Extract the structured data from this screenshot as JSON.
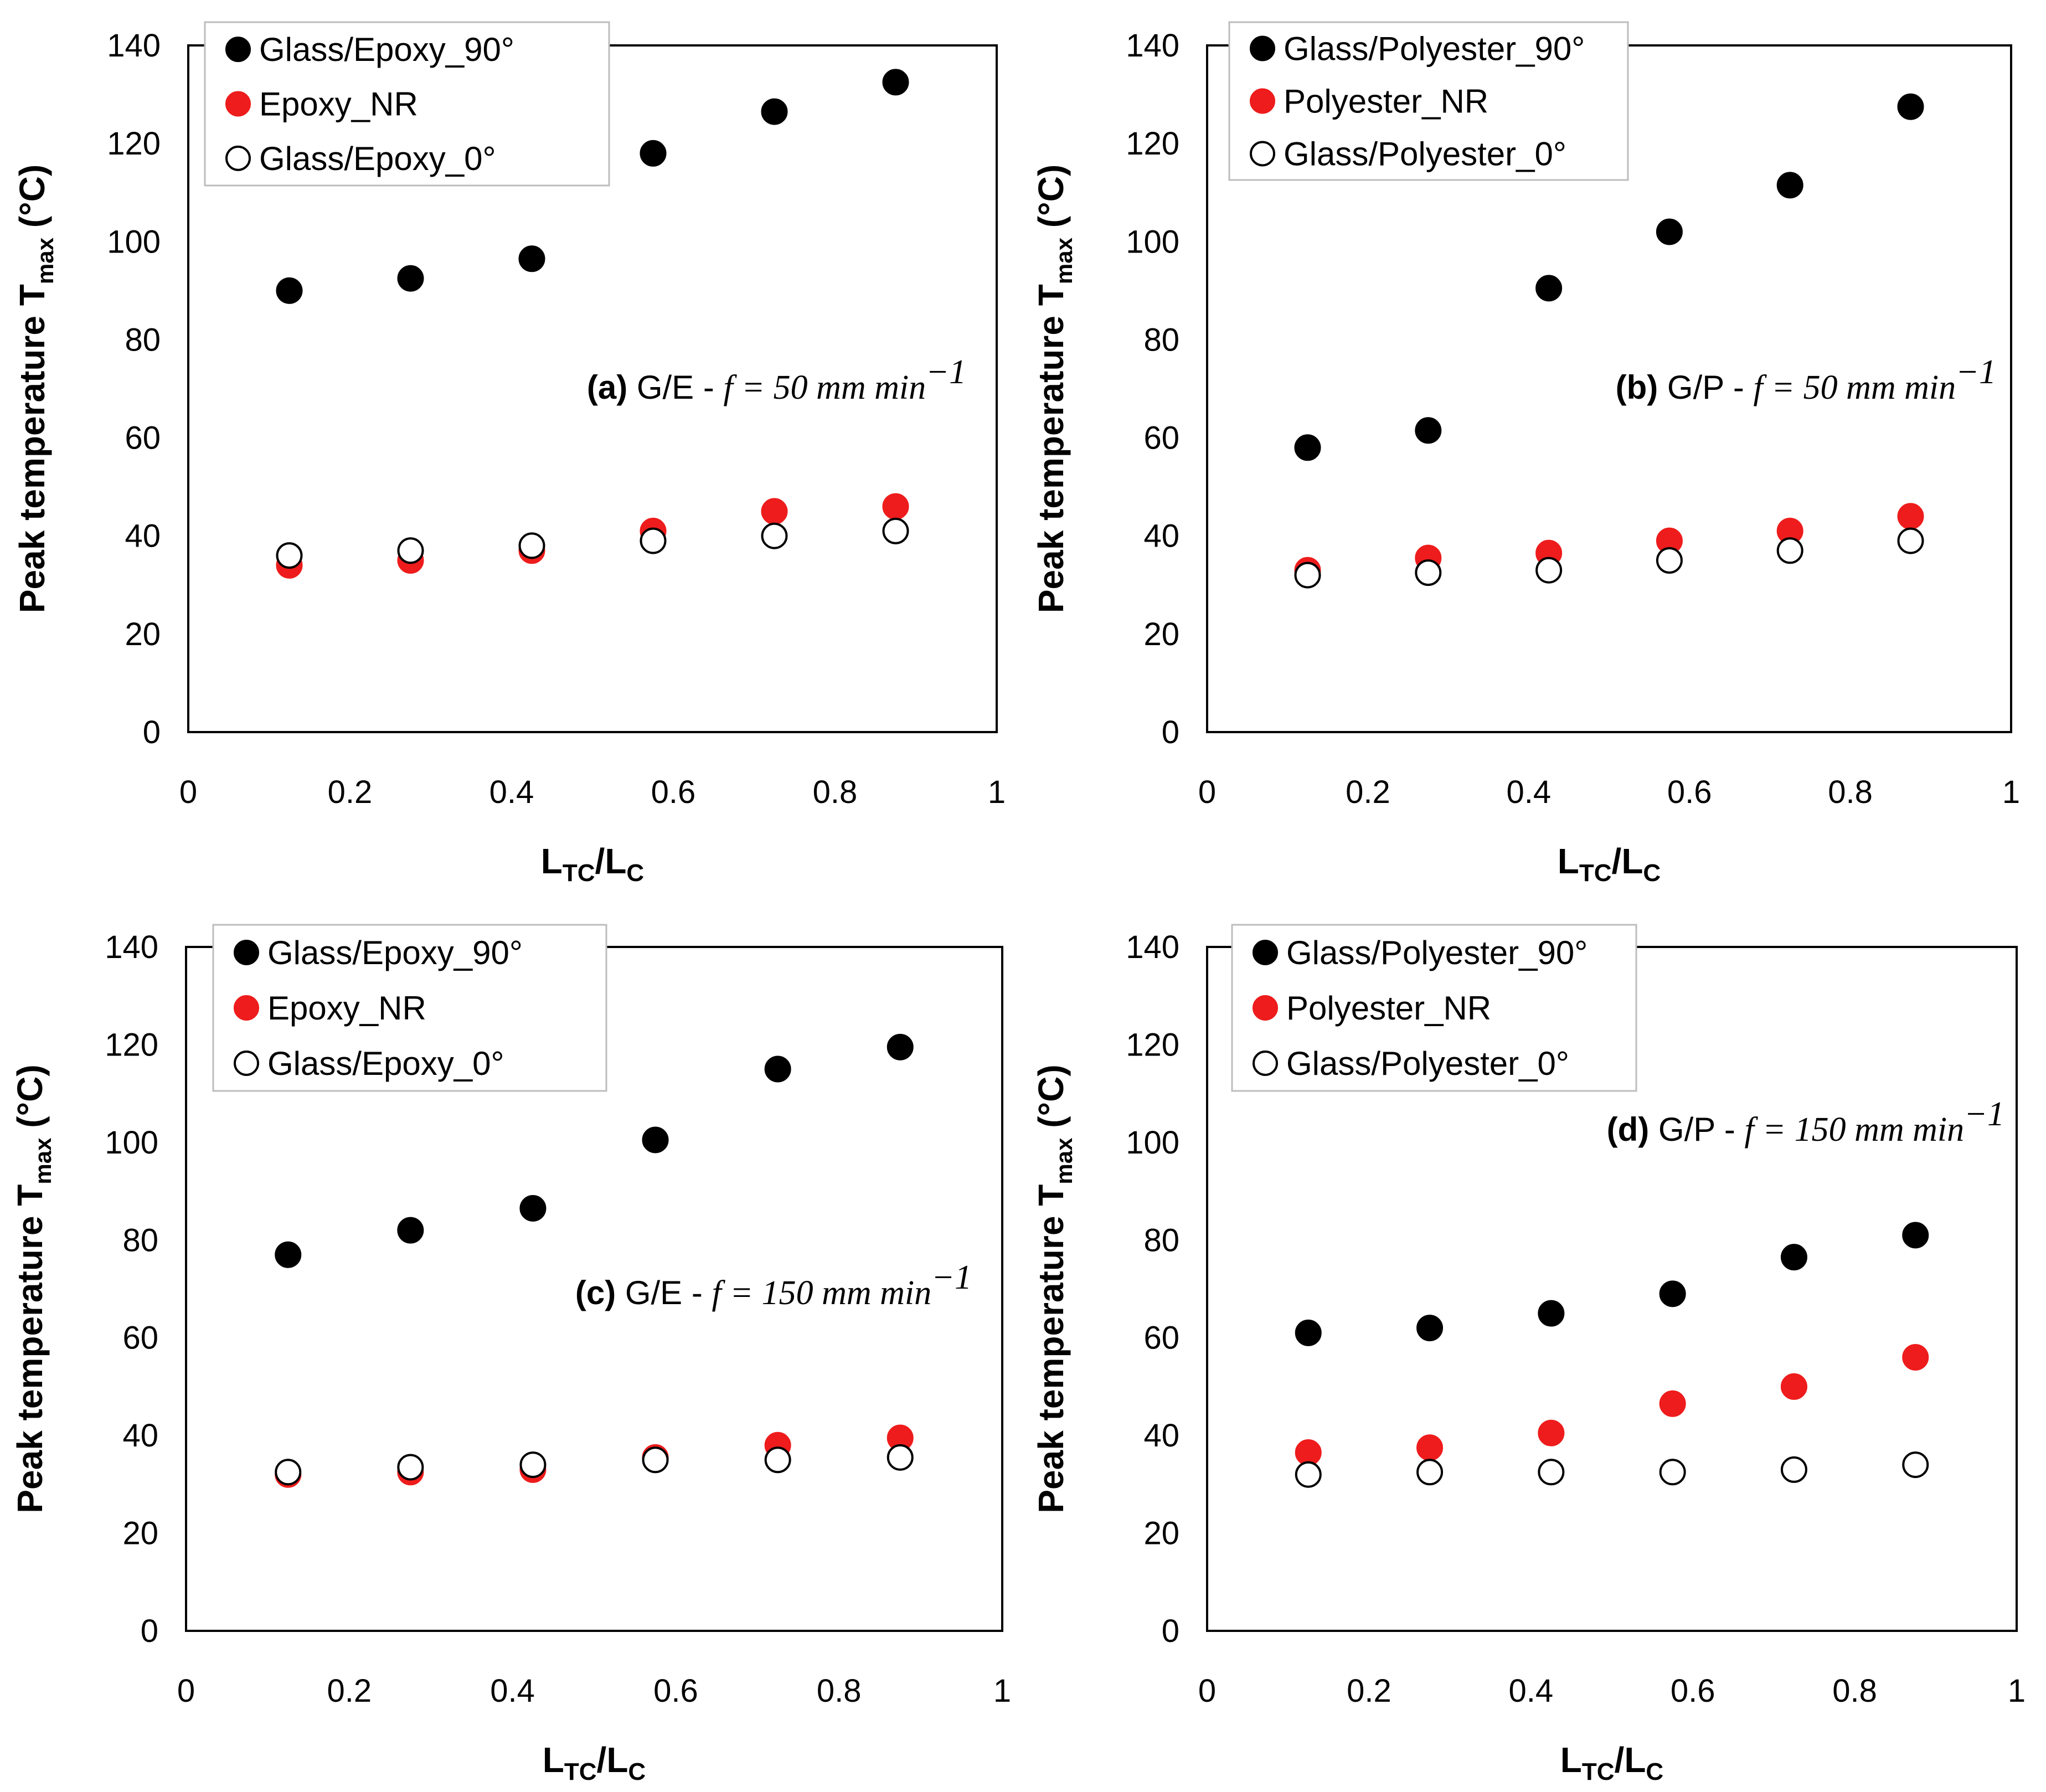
{
  "colors": {
    "black_marker": "#000000",
    "red_marker": "#ee1c1c",
    "open_marker_fill": "#ffffff"
  },
  "chart_data": [
    {
      "panel": "a",
      "type": "scatter",
      "xlabel_main": "L",
      "xlabel_sub1": "TC",
      "xlabel_sep": "/L",
      "xlabel_sub2": "C",
      "ylabel_main": "Peak temperature T",
      "ylabel_sub": "max",
      "ylabel_unit": " (°C)",
      "xlim": [
        0,
        1
      ],
      "ylim": [
        0,
        140
      ],
      "x_ticks": [
        "0",
        "0.2",
        "0.4",
        "0.6",
        "0.8",
        "1"
      ],
      "y_ticks": [
        "0",
        "20",
        "40",
        "60",
        "80",
        "100",
        "120",
        "140"
      ],
      "annotation": {
        "label": "(a)",
        "text": "G/E - ",
        "formula": "f = 50 mm min",
        "exponent": "−1"
      },
      "legend_position": "top-left",
      "series": [
        {
          "name": "Glass/Epoxy_90°",
          "marker": "filled-black",
          "x": [
            0.125,
            0.275,
            0.425,
            0.575,
            0.725,
            0.875
          ],
          "y": [
            90,
            92.5,
            96.5,
            118,
            126.5,
            132.5
          ]
        },
        {
          "name": "Epoxy_NR",
          "marker": "filled-red",
          "x": [
            0.125,
            0.275,
            0.425,
            0.575,
            0.725,
            0.875
          ],
          "y": [
            34,
            35,
            37,
            41,
            45,
            46
          ]
        },
        {
          "name": "Glass/Epoxy_0°",
          "marker": "open",
          "x": [
            0.125,
            0.275,
            0.425,
            0.575,
            0.725,
            0.875
          ],
          "y": [
            36,
            37,
            38,
            39,
            40,
            41
          ]
        }
      ]
    },
    {
      "panel": "b",
      "type": "scatter",
      "xlabel_main": "L",
      "xlabel_sub1": "TC",
      "xlabel_sep": "/L",
      "xlabel_sub2": "C",
      "ylabel_main": "Peak temperature T",
      "ylabel_sub": "max",
      "ylabel_unit": " (°C)",
      "xlim": [
        0,
        1
      ],
      "ylim": [
        0,
        140
      ],
      "x_ticks": [
        "0",
        "0.2",
        "0.4",
        "0.6",
        "0.8",
        "1"
      ],
      "y_ticks": [
        "0",
        "20",
        "40",
        "60",
        "80",
        "100",
        "120",
        "140"
      ],
      "annotation": {
        "label": "(b)",
        "text": "G/P - ",
        "formula": "f = 50 mm min",
        "exponent": "−1"
      },
      "legend_position": "top-left",
      "series": [
        {
          "name": "Glass/Polyester_90°",
          "marker": "filled-black",
          "x": [
            0.125,
            0.275,
            0.425,
            0.575,
            0.725,
            0.875
          ],
          "y": [
            58,
            61.5,
            90.5,
            102,
            111.5,
            127.5
          ]
        },
        {
          "name": "Polyester_NR",
          "marker": "filled-red",
          "x": [
            0.125,
            0.275,
            0.425,
            0.575,
            0.725,
            0.875
          ],
          "y": [
            33,
            35.5,
            36.5,
            39,
            41,
            44
          ]
        },
        {
          "name": "Glass/Polyester_0°",
          "marker": "open",
          "x": [
            0.125,
            0.275,
            0.425,
            0.575,
            0.725,
            0.875
          ],
          "y": [
            32,
            32.5,
            33,
            35,
            37,
            39
          ]
        }
      ]
    },
    {
      "panel": "c",
      "type": "scatter",
      "xlabel_main": "L",
      "xlabel_sub1": "TC",
      "xlabel_sep": "/L",
      "xlabel_sub2": "C",
      "ylabel_main": "Peak temperature T",
      "ylabel_sub": "max",
      "ylabel_unit": " (°C)",
      "xlim": [
        0,
        1
      ],
      "ylim": [
        0,
        140
      ],
      "x_ticks": [
        "0",
        "0.2",
        "0.4",
        "0.6",
        "0.8",
        "1"
      ],
      "y_ticks": [
        "0",
        "20",
        "40",
        "60",
        "80",
        "100",
        "120",
        "140"
      ],
      "annotation": {
        "label": "(c)",
        "text": "G/E - ",
        "formula": "f = 150 mm min",
        "exponent": "−1"
      },
      "legend_position": "top-left",
      "series": [
        {
          "name": "Glass/Epoxy_90°",
          "marker": "filled-black",
          "x": [
            0.125,
            0.275,
            0.425,
            0.575,
            0.725,
            0.875
          ],
          "y": [
            77,
            82,
            86.5,
            100.5,
            115,
            119.5
          ]
        },
        {
          "name": "Epoxy_NR",
          "marker": "filled-red",
          "x": [
            0.125,
            0.275,
            0.425,
            0.575,
            0.725,
            0.875
          ],
          "y": [
            32,
            32.5,
            33,
            35.5,
            38,
            39.5
          ]
        },
        {
          "name": "Glass/Epoxy_0°",
          "marker": "open",
          "x": [
            0.125,
            0.275,
            0.425,
            0.575,
            0.725,
            0.875
          ],
          "y": [
            32.5,
            33.5,
            34,
            35,
            35,
            35.5
          ]
        }
      ]
    },
    {
      "panel": "d",
      "type": "scatter",
      "xlabel_main": "L",
      "xlabel_sub1": "TC",
      "xlabel_sep": "/L",
      "xlabel_sub2": "C",
      "ylabel_main": "Peak temperature T",
      "ylabel_sub": "max",
      "ylabel_unit": " (°C)",
      "xlim": [
        0,
        1
      ],
      "ylim": [
        0,
        140
      ],
      "x_ticks": [
        "0",
        "0.2",
        "0.4",
        "0.6",
        "0.8",
        "1"
      ],
      "y_ticks": [
        "0",
        "20",
        "40",
        "60",
        "80",
        "100",
        "120",
        "140"
      ],
      "annotation": {
        "label": "(d)",
        "text": "G/P - ",
        "formula": "f = 150 mm min",
        "exponent": "−1"
      },
      "legend_position": "top-left",
      "series": [
        {
          "name": "Glass/Polyester_90°",
          "marker": "filled-black",
          "x": [
            0.125,
            0.275,
            0.425,
            0.575,
            0.725,
            0.875
          ],
          "y": [
            61,
            62,
            65,
            69,
            76.5,
            81
          ]
        },
        {
          "name": "Polyester_NR",
          "marker": "filled-red",
          "x": [
            0.125,
            0.275,
            0.425,
            0.575,
            0.725,
            0.875
          ],
          "y": [
            36.5,
            37.5,
            40.5,
            46.5,
            50,
            56
          ]
        },
        {
          "name": "Glass/Polyester_0°",
          "marker": "open",
          "x": [
            0.125,
            0.275,
            0.425,
            0.575,
            0.725,
            0.875
          ],
          "y": [
            32,
            32.5,
            32.5,
            32.5,
            33,
            34
          ]
        }
      ]
    }
  ]
}
